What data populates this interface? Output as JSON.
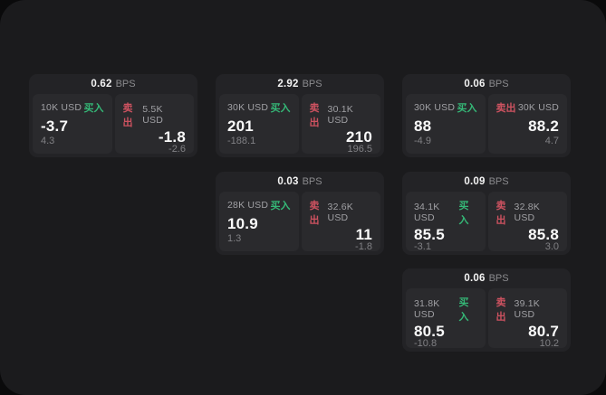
{
  "colors": {
    "outer_background": "#0a0a0b",
    "surface_background": "#1b1b1d",
    "card_background": "#232326",
    "panel_background": "#2a2a2d",
    "buy_green": "#35b877",
    "sell_red": "#cd5260"
  },
  "cards": [
    {
      "bps_value": "0.62",
      "bps_unit": "BPS",
      "buy": {
        "amount": "10K USD",
        "side": "买入",
        "price": "-3.7",
        "sub": "4.3"
      },
      "sell": {
        "side": "卖出",
        "amount": "5.5K USD",
        "price": "-1.8",
        "sub": "-2.6"
      }
    },
    {
      "bps_value": "2.92",
      "bps_unit": "BPS",
      "buy": {
        "amount": "30K USD",
        "side": "买入",
        "price": "201",
        "sub": "-188.1"
      },
      "sell": {
        "side": "卖出",
        "amount": "30.1K USD",
        "price": "210",
        "sub": "196.5"
      }
    },
    {
      "bps_value": "0.06",
      "bps_unit": "BPS",
      "buy": {
        "amount": "30K USD",
        "side": "买入",
        "price": "88",
        "sub": "-4.9"
      },
      "sell": {
        "side": "卖出",
        "amount": "30K USD",
        "price": "88.2",
        "sub": "4.7"
      }
    },
    {
      "bps_value": "0.03",
      "bps_unit": "BPS",
      "buy": {
        "amount": "28K USD",
        "side": "买入",
        "price": "10.9",
        "sub": "1.3"
      },
      "sell": {
        "side": "卖出",
        "amount": "32.6K USD",
        "price": "11",
        "sub": "-1.8"
      }
    },
    {
      "bps_value": "0.09",
      "bps_unit": "BPS",
      "buy": {
        "amount": "34.1K USD",
        "side": "买入",
        "price": "85.5",
        "sub": "-3.1"
      },
      "sell": {
        "side": "卖出",
        "amount": "32.8K USD",
        "price": "85.8",
        "sub": "3.0"
      }
    },
    {
      "bps_value": "0.06",
      "bps_unit": "BPS",
      "buy": {
        "amount": "31.8K USD",
        "side": "买入",
        "price": "80.5",
        "sub": "-10.8"
      },
      "sell": {
        "side": "卖出",
        "amount": "39.1K USD",
        "price": "80.7",
        "sub": "10.2"
      }
    }
  ]
}
